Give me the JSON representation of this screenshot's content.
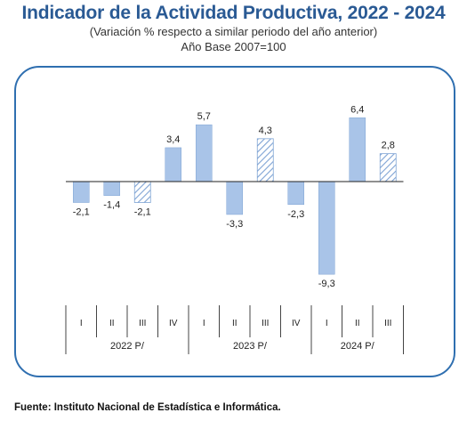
{
  "title": "Indicador de la Actividad Productiva, 2022 - 2024",
  "subtitle": "(Variación % respecto a similar periodo del año anterior)",
  "base_year": "Año Base 2007=100",
  "source": "Fuente: Instituto Nacional de Estadística e Informática.",
  "colors": {
    "title": "#2a5a94",
    "bar_fill": "#a9c4e8",
    "bar_stroke": "#7ea3d4",
    "hatch": "#7ea3d4",
    "frame": "#2f6fb0"
  },
  "chart_data": {
    "type": "bar",
    "categories": [
      "I",
      "II",
      "III",
      "IV",
      "I",
      "II",
      "III",
      "IV",
      "I",
      "II",
      "III"
    ],
    "groups": [
      {
        "label": "2022 P/",
        "quarters": [
          "I",
          "II",
          "III",
          "IV"
        ]
      },
      {
        "label": "2023 P/",
        "quarters": [
          "I",
          "II",
          "III",
          "IV"
        ]
      },
      {
        "label": "2024 P/",
        "quarters": [
          "I",
          "II",
          "III"
        ]
      }
    ],
    "values": [
      -2.1,
      -1.4,
      -2.1,
      3.4,
      5.7,
      -3.3,
      4.3,
      -2.3,
      -9.3,
      6.4,
      2.8
    ],
    "value_labels": [
      "-2,1",
      "-1,4",
      "-2,1",
      "3,4",
      "5,7",
      "-3,3",
      "4,3",
      "-2,3",
      "-9,3",
      "6,4",
      "2,8"
    ],
    "hatched": [
      false,
      false,
      true,
      false,
      false,
      false,
      true,
      false,
      false,
      false,
      true
    ],
    "ylim": [
      -9.3,
      6.4
    ],
    "grid": false,
    "legend": "none"
  }
}
